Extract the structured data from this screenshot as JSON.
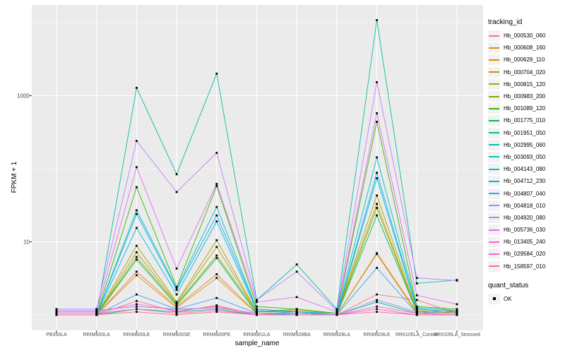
{
  "figure": {
    "background": "#FFFFFF",
    "panel_background": "#EBEBEB",
    "grid_color": "#FFFFFF",
    "tick_color": "#333333",
    "axis_text_color": "#4D4D4D",
    "point_color": "#000000",
    "legend_key_background": "#F2F2F2"
  },
  "legend": {
    "tracking_title": "tracking_id",
    "quant_title": "quant_status",
    "quant_items": [
      {
        "label": "OK"
      }
    ]
  },
  "chart_data": {
    "type": "line",
    "title": "",
    "xlabel": "sample_name",
    "ylabel": "FPKM + 1",
    "yscale": "log10",
    "ylim": [
      0.6,
      17500
    ],
    "yticks": [
      10,
      1000
    ],
    "yticks_minor": [
      1,
      100,
      10000
    ],
    "grid": true,
    "legend_position": "right",
    "point_shape": "square",
    "x_categories": [
      "PB350LA",
      "RRIM600LA",
      "RRIM600LE",
      "RRIM600SE",
      "RRIM600PE",
      "RRIM901LA",
      "RRIM928BA",
      "RRIM928LA",
      "RRIM928LE",
      "RRII105LA_Control",
      "RRII105LA_Stressed"
    ],
    "series": [
      {
        "name": "Hb_000530_060",
        "color": "#F8766D",
        "values": [
          1,
          1,
          1.55,
          1.1,
          1.35,
          1,
          1.05,
          1,
          1.9,
          1.6,
          1.05
        ]
      },
      {
        "name": "Hb_000608_160",
        "color": "#EA8331",
        "values": [
          1,
          1,
          3.9,
          1.3,
          3.6,
          1.05,
          1.05,
          1,
          7,
          1.1,
          1.15
        ]
      },
      {
        "name": "Hb_000629_110",
        "color": "#D89000",
        "values": [
          1,
          1,
          3.5,
          1.25,
          3.2,
          1.05,
          1.05,
          1,
          6.8,
          1.05,
          1.1
        ]
      },
      {
        "name": "Hb_000704_020",
        "color": "#C09B00",
        "values": [
          1,
          1,
          7.2,
          1.45,
          8.5,
          1.1,
          1.15,
          1.05,
          33,
          1.1,
          1.05
        ]
      },
      {
        "name": "Hb_000815_120",
        "color": "#A3A500",
        "values": [
          1,
          1,
          8.8,
          1.5,
          10.5,
          1.1,
          1.2,
          1.05,
          43,
          1.15,
          1.05
        ]
      },
      {
        "name": "Hb_000983_200",
        "color": "#7CAE00",
        "values": [
          1,
          1,
          6.2,
          1.4,
          6.5,
          1.1,
          1.1,
          1,
          29,
          1.1,
          1.05
        ]
      },
      {
        "name": "Hb_001089_120",
        "color": "#39B600",
        "values": [
          1,
          1,
          56,
          2.4,
          58,
          1.3,
          1.2,
          1.05,
          440,
          1.3,
          1.2
        ]
      },
      {
        "name": "Hb_001775_010",
        "color": "#00BB4E",
        "values": [
          1,
          1,
          5.7,
          1.35,
          6,
          1.05,
          1.05,
          1,
          23,
          1.1,
          1.05
        ]
      },
      {
        "name": "Hb_001951_050",
        "color": "#00BF7D",
        "values": [
          1,
          1,
          1.2,
          1.1,
          1.2,
          1,
          1,
          1,
          1.5,
          1.05,
          1
        ]
      },
      {
        "name": "Hb_002995_060",
        "color": "#00C1A3",
        "values": [
          1,
          1,
          1280,
          84,
          2000,
          1.6,
          4.9,
          1.2,
          10800,
          2.7,
          3.0
        ]
      },
      {
        "name": "Hb_003093_050",
        "color": "#00BFC4",
        "values": [
          1,
          1,
          27,
          2.3,
          30,
          1.2,
          1.1,
          1.05,
          143,
          1.25,
          1.15
        ]
      },
      {
        "name": "Hb_004143_080",
        "color": "#00BAE0",
        "values": [
          1,
          1,
          15.5,
          1.9,
          19,
          1.15,
          1.05,
          1,
          74,
          1.2,
          1.1
        ]
      },
      {
        "name": "Hb_004712_230",
        "color": "#00B0F6",
        "values": [
          1,
          1,
          24,
          2.2,
          23,
          1.2,
          1.1,
          1,
          88,
          1.2,
          1.1
        ]
      },
      {
        "name": "Hb_004807_040",
        "color": "#35A2FF",
        "values": [
          1,
          1,
          1.9,
          1.2,
          1.7,
          1.05,
          1,
          1,
          4.4,
          1.05,
          1
        ]
      },
      {
        "name": "Hb_004818_010",
        "color": "#9590FF",
        "values": [
          1.15,
          1.15,
          1.3,
          1.2,
          1.25,
          1.05,
          1.05,
          1,
          1.6,
          1.1,
          1.05
        ]
      },
      {
        "name": "Hb_004920_080",
        "color": "#C77CFF",
        "values": [
          1.2,
          1.2,
          240,
          48,
          165,
          1.6,
          3.9,
          1.15,
          1530,
          3.2,
          2.95
        ]
      },
      {
        "name": "Hb_005736_030",
        "color": "#E76BF3",
        "values": [
          1.1,
          1.1,
          105,
          4.3,
          62,
          1.5,
          1.75,
          1.1,
          575,
          1.85,
          1.4
        ]
      },
      {
        "name": "Hb_013405_240",
        "color": "#FA62DB",
        "values": [
          1.1,
          1.1,
          1.4,
          1.15,
          1.3,
          1,
          1,
          1,
          1.3,
          1.05,
          1
        ]
      },
      {
        "name": "Hb_029584_020",
        "color": "#FF62BC",
        "values": [
          1.05,
          1.05,
          1.2,
          1.05,
          1.15,
          1,
          1,
          1,
          1.2,
          1,
          1
        ]
      },
      {
        "name": "Hb_158597_010",
        "color": "#FF6A98",
        "values": [
          1,
          1,
          1.1,
          1,
          1.1,
          1,
          1,
          1,
          1.1,
          1,
          1
        ]
      }
    ]
  }
}
